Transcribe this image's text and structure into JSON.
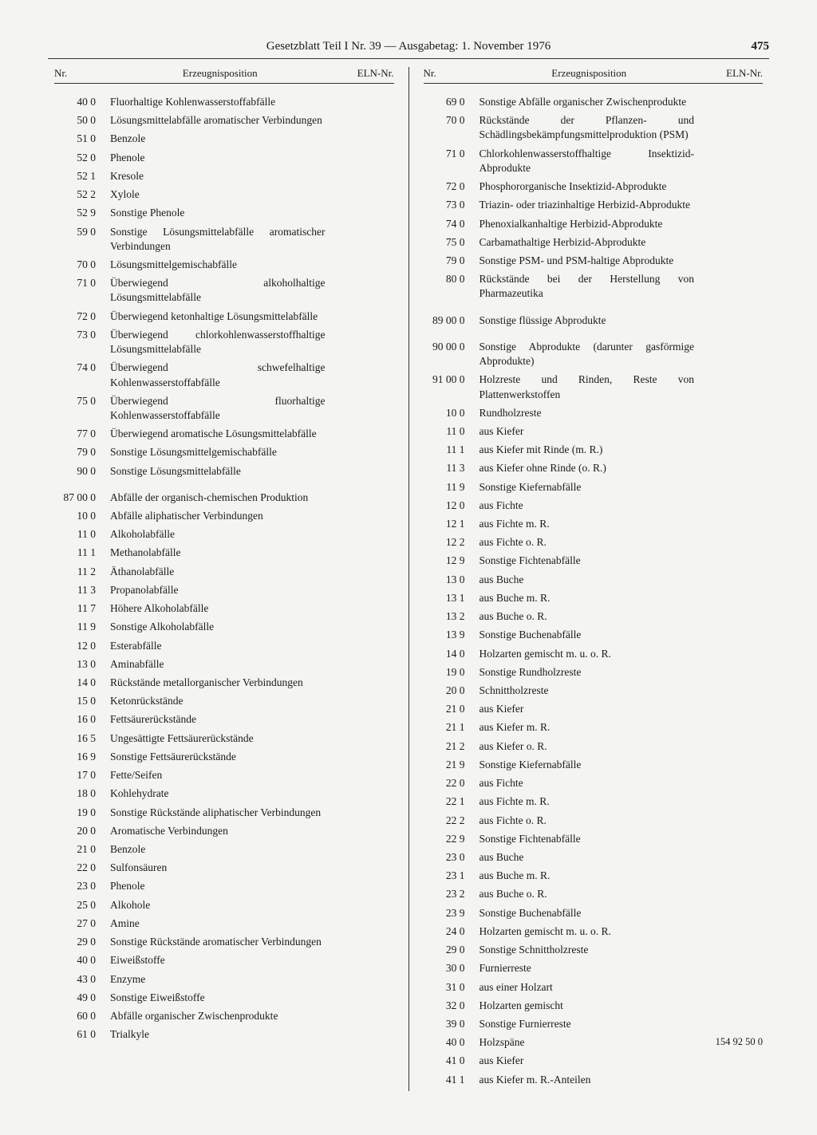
{
  "header": "Gesetzblatt Teil I Nr. 39 — Ausgabetag: 1. November 1976",
  "pageNumber": "475",
  "colHeaders": {
    "nr": "Nr.",
    "pos": "Erzeugnisposition",
    "eln": "ELN-Nr."
  },
  "left": [
    {
      "nr": "40 0",
      "pos": "Fluorhaltige Kohlenwasserstoffabfälle"
    },
    {
      "nr": "50 0",
      "pos": "Lösungsmittelabfälle aromatischer Verbindungen"
    },
    {
      "nr": "51 0",
      "pos": "Benzole"
    },
    {
      "nr": "52 0",
      "pos": "Phenole"
    },
    {
      "nr": "52 1",
      "pos": "Kresole"
    },
    {
      "nr": "52 2",
      "pos": "Xylole"
    },
    {
      "nr": "52 9",
      "pos": "Sonstige Phenole"
    },
    {
      "nr": "59 0",
      "pos": "Sonstige Lösungsmittelabfälle aromatischer Verbindungen"
    },
    {
      "nr": "70 0",
      "pos": "Lösungsmittelgemischabfälle"
    },
    {
      "nr": "71 0",
      "pos": "Überwiegend alkoholhaltige Lösungsmittelabfälle"
    },
    {
      "nr": "72 0",
      "pos": "Überwiegend ketonhaltige Lösungsmittelabfälle"
    },
    {
      "nr": "73 0",
      "pos": "Überwiegend chlorkohlenwasserstoffhaltige Lösungsmittelabfälle"
    },
    {
      "nr": "74 0",
      "pos": "Überwiegend schwefelhaltige Kohlenwasserstoffabfälle"
    },
    {
      "nr": "75 0",
      "pos": "Überwiegend fluorhaltige Kohlenwasserstoffabfälle"
    },
    {
      "nr": "77 0",
      "pos": "Überwiegend aromatische Lösungsmittelabfälle"
    },
    {
      "nr": "79 0",
      "pos": "Sonstige Lösungsmittelgemischabfälle"
    },
    {
      "nr": "90 0",
      "pos": "Sonstige Lösungsmittelabfälle"
    },
    {
      "gap": true
    },
    {
      "nr": "87 00 0",
      "pos": "Abfälle der organisch-chemischen Produktion"
    },
    {
      "nr": "10 0",
      "pos": "Abfälle aliphatischer Verbindungen"
    },
    {
      "nr": "11 0",
      "pos": "Alkoholabfälle"
    },
    {
      "nr": "11 1",
      "pos": "Methanolabfälle"
    },
    {
      "nr": "11 2",
      "pos": "Äthanolabfälle"
    },
    {
      "nr": "11 3",
      "pos": "Propanolabfälle"
    },
    {
      "nr": "11 7",
      "pos": "Höhere Alkoholabfälle"
    },
    {
      "nr": "11 9",
      "pos": "Sonstige Alkoholabfälle"
    },
    {
      "nr": "12 0",
      "pos": "Esterabfälle"
    },
    {
      "nr": "13 0",
      "pos": "Aminabfälle"
    },
    {
      "nr": "14 0",
      "pos": "Rückstände metallorganischer Verbindungen"
    },
    {
      "nr": "15 0",
      "pos": "Ketonrückstände"
    },
    {
      "nr": "16 0",
      "pos": "Fettsäurerückstände"
    },
    {
      "nr": "16 5",
      "pos": "Ungesättigte Fettsäurerückstände"
    },
    {
      "nr": "16 9",
      "pos": "Sonstige Fettsäurerückstände"
    },
    {
      "nr": "17 0",
      "pos": "Fette/Seifen"
    },
    {
      "nr": "18 0",
      "pos": "Kohlehydrate"
    },
    {
      "nr": "19 0",
      "pos": "Sonstige Rückstände aliphatischer Verbindungen"
    },
    {
      "nr": "20 0",
      "pos": "Aromatische Verbindungen"
    },
    {
      "nr": "21 0",
      "pos": "Benzole"
    },
    {
      "nr": "22 0",
      "pos": "Sulfonsäuren"
    },
    {
      "nr": "23 0",
      "pos": "Phenole"
    },
    {
      "nr": "25 0",
      "pos": "Alkohole"
    },
    {
      "nr": "27 0",
      "pos": "Amine"
    },
    {
      "nr": "29 0",
      "pos": "Sonstige Rückstände aromatischer Verbindungen"
    },
    {
      "nr": "40 0",
      "pos": "Eiweißstoffe"
    },
    {
      "nr": "43 0",
      "pos": "Enzyme"
    },
    {
      "nr": "49 0",
      "pos": "Sonstige Eiweißstoffe"
    },
    {
      "nr": "60 0",
      "pos": "Abfälle organischer Zwischenprodukte"
    },
    {
      "nr": "61 0",
      "pos": "Trialkyle"
    }
  ],
  "right": [
    {
      "nr": "69 0",
      "pos": "Sonstige Abfälle organischer Zwischenprodukte"
    },
    {
      "nr": "70 0",
      "pos": "Rückstände der Pflanzen- und Schädlingsbekämpfungsmittelproduktion (PSM)"
    },
    {
      "nr": "71 0",
      "pos": "Chlorkohlenwasserstoffhaltige Insektizid-Abprodukte"
    },
    {
      "nr": "72 0",
      "pos": "Phosphororganische Insektizid-Abprodukte"
    },
    {
      "nr": "73 0",
      "pos": "Triazin- oder triazinhaltige Herbizid-Abprodukte"
    },
    {
      "nr": "74 0",
      "pos": "Phenoxialkanhaltige Herbizid-Abprodukte"
    },
    {
      "nr": "75 0",
      "pos": "Carbamathaltige Herbizid-Abprodukte"
    },
    {
      "nr": "79 0",
      "pos": "Sonstige PSM- und PSM-haltige Abprodukte"
    },
    {
      "nr": "80 0",
      "pos": "Rückstände bei der Herstellung von Pharmazeutika"
    },
    {
      "gap": true
    },
    {
      "nr": "89 00 0",
      "pos": "Sonstige flüssige Abprodukte"
    },
    {
      "gap": true
    },
    {
      "nr": "90 00 0",
      "pos": "Sonstige Abprodukte (darunter gasförmige Abprodukte)"
    },
    {
      "nr": "91 00 0",
      "pos": "Holzreste und Rinden, Reste von Plattenwerkstoffen"
    },
    {
      "nr": "10 0",
      "pos": "Rundholzreste"
    },
    {
      "nr": "11 0",
      "pos": "aus Kiefer"
    },
    {
      "nr": "11 1",
      "pos": "aus Kiefer mit Rinde (m. R.)"
    },
    {
      "nr": "11 3",
      "pos": "aus Kiefer ohne Rinde (o. R.)"
    },
    {
      "nr": "11 9",
      "pos": "Sonstige Kiefernabfälle"
    },
    {
      "nr": "12 0",
      "pos": "aus Fichte"
    },
    {
      "nr": "12 1",
      "pos": "aus Fichte m. R."
    },
    {
      "nr": "12 2",
      "pos": "aus Fichte o. R."
    },
    {
      "nr": "12 9",
      "pos": "Sonstige Fichtenabfälle"
    },
    {
      "nr": "13 0",
      "pos": "aus Buche"
    },
    {
      "nr": "13 1",
      "pos": "aus Buche m. R."
    },
    {
      "nr": "13 2",
      "pos": "aus Buche o. R."
    },
    {
      "nr": "13 9",
      "pos": "Sonstige Buchenabfälle"
    },
    {
      "nr": "14 0",
      "pos": "Holzarten gemischt m. u. o. R."
    },
    {
      "nr": "19 0",
      "pos": "Sonstige Rundholzreste"
    },
    {
      "nr": "20 0",
      "pos": "Schnittholzreste"
    },
    {
      "nr": "21 0",
      "pos": "aus Kiefer"
    },
    {
      "nr": "21 1",
      "pos": "aus Kiefer m. R."
    },
    {
      "nr": "21 2",
      "pos": "aus Kiefer o. R."
    },
    {
      "nr": "21 9",
      "pos": "Sonstige Kiefernabfälle"
    },
    {
      "nr": "22 0",
      "pos": "aus Fichte"
    },
    {
      "nr": "22 1",
      "pos": "aus Fichte m. R."
    },
    {
      "nr": "22 2",
      "pos": "aus Fichte o. R."
    },
    {
      "nr": "22 9",
      "pos": "Sonstige Fichtenabfälle"
    },
    {
      "nr": "23 0",
      "pos": "aus Buche"
    },
    {
      "nr": "23 1",
      "pos": "aus Buche m. R."
    },
    {
      "nr": "23 2",
      "pos": "aus Buche o. R."
    },
    {
      "nr": "23 9",
      "pos": "Sonstige Buchenabfälle"
    },
    {
      "nr": "24 0",
      "pos": "Holzarten gemischt m. u. o. R."
    },
    {
      "nr": "29 0",
      "pos": "Sonstige Schnittholzreste"
    },
    {
      "nr": "30 0",
      "pos": "Furnierreste"
    },
    {
      "nr": "31 0",
      "pos": "aus einer Holzart"
    },
    {
      "nr": "32 0",
      "pos": "Holzarten gemischt"
    },
    {
      "nr": "39 0",
      "pos": "Sonstige Furnierreste"
    },
    {
      "nr": "40 0",
      "pos": "Holzspäne",
      "eln": "154 92 50 0"
    },
    {
      "nr": "41 0",
      "pos": "aus Kiefer"
    },
    {
      "nr": "41 1",
      "pos": "aus Kiefer m. R.-Anteilen"
    }
  ]
}
